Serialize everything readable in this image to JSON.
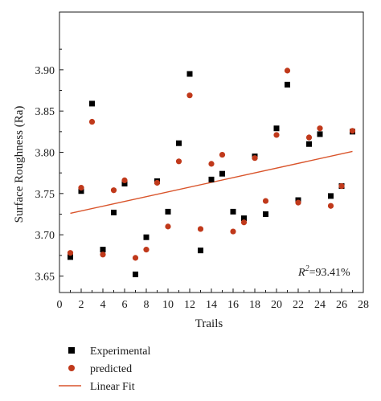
{
  "chart_data": {
    "type": "scatter",
    "xlabel": "Trails",
    "ylabel": "Surface Roughness (Ra)",
    "xlim": [
      0,
      28
    ],
    "ylim": [
      3.63,
      3.97
    ],
    "xticks": [
      0,
      2,
      4,
      6,
      8,
      10,
      12,
      14,
      16,
      18,
      20,
      22,
      24,
      26,
      28
    ],
    "yticks": [
      3.65,
      3.7,
      3.75,
      3.8,
      3.85,
      3.9
    ],
    "ytick_labels": [
      "3.65",
      "3.70",
      "3.75",
      "3.80",
      "3.85",
      "3.90"
    ],
    "xtick_labels": [
      "0",
      "2",
      "4",
      "6",
      "8",
      "10",
      "12",
      "14",
      "16",
      "18",
      "20",
      "22",
      "24",
      "26",
      "28"
    ],
    "annotation": {
      "prefix": "R",
      "sup": "2",
      "suffix": "=93.41%"
    },
    "grid": false,
    "legend_position": "bottom-left",
    "series": [
      {
        "name": "Experimental",
        "marker": "square",
        "color": "#000000",
        "x": [
          1,
          2,
          3,
          4,
          5,
          6,
          7,
          8,
          9,
          10,
          11,
          12,
          13,
          14,
          15,
          16,
          17,
          18,
          19,
          20,
          21,
          22,
          23,
          24,
          25,
          26,
          27
        ],
        "y": [
          3.673,
          3.753,
          3.859,
          3.682,
          3.727,
          3.762,
          3.652,
          3.697,
          3.765,
          3.728,
          3.811,
          3.895,
          3.681,
          3.767,
          3.774,
          3.728,
          3.72,
          3.795,
          3.725,
          3.829,
          3.882,
          3.742,
          3.81,
          3.822,
          3.747,
          3.759,
          3.825
        ]
      },
      {
        "name": "predicted",
        "marker": "circle",
        "color": "#c0391b",
        "x": [
          1,
          2,
          3,
          4,
          5,
          6,
          7,
          8,
          9,
          10,
          11,
          12,
          13,
          14,
          15,
          16,
          17,
          18,
          19,
          20,
          21,
          22,
          23,
          24,
          25,
          26,
          27
        ],
        "y": [
          3.678,
          3.757,
          3.837,
          3.676,
          3.754,
          3.766,
          3.672,
          3.682,
          3.763,
          3.71,
          3.789,
          3.869,
          3.707,
          3.786,
          3.797,
          3.704,
          3.715,
          3.793,
          3.741,
          3.821,
          3.899,
          3.739,
          3.818,
          3.829,
          3.735,
          3.759,
          3.826
        ]
      },
      {
        "name": "Linear Fit",
        "marker": "line",
        "color": "#d9542b",
        "x": [
          1,
          27
        ],
        "y": [
          3.726,
          3.801
        ]
      }
    ]
  }
}
